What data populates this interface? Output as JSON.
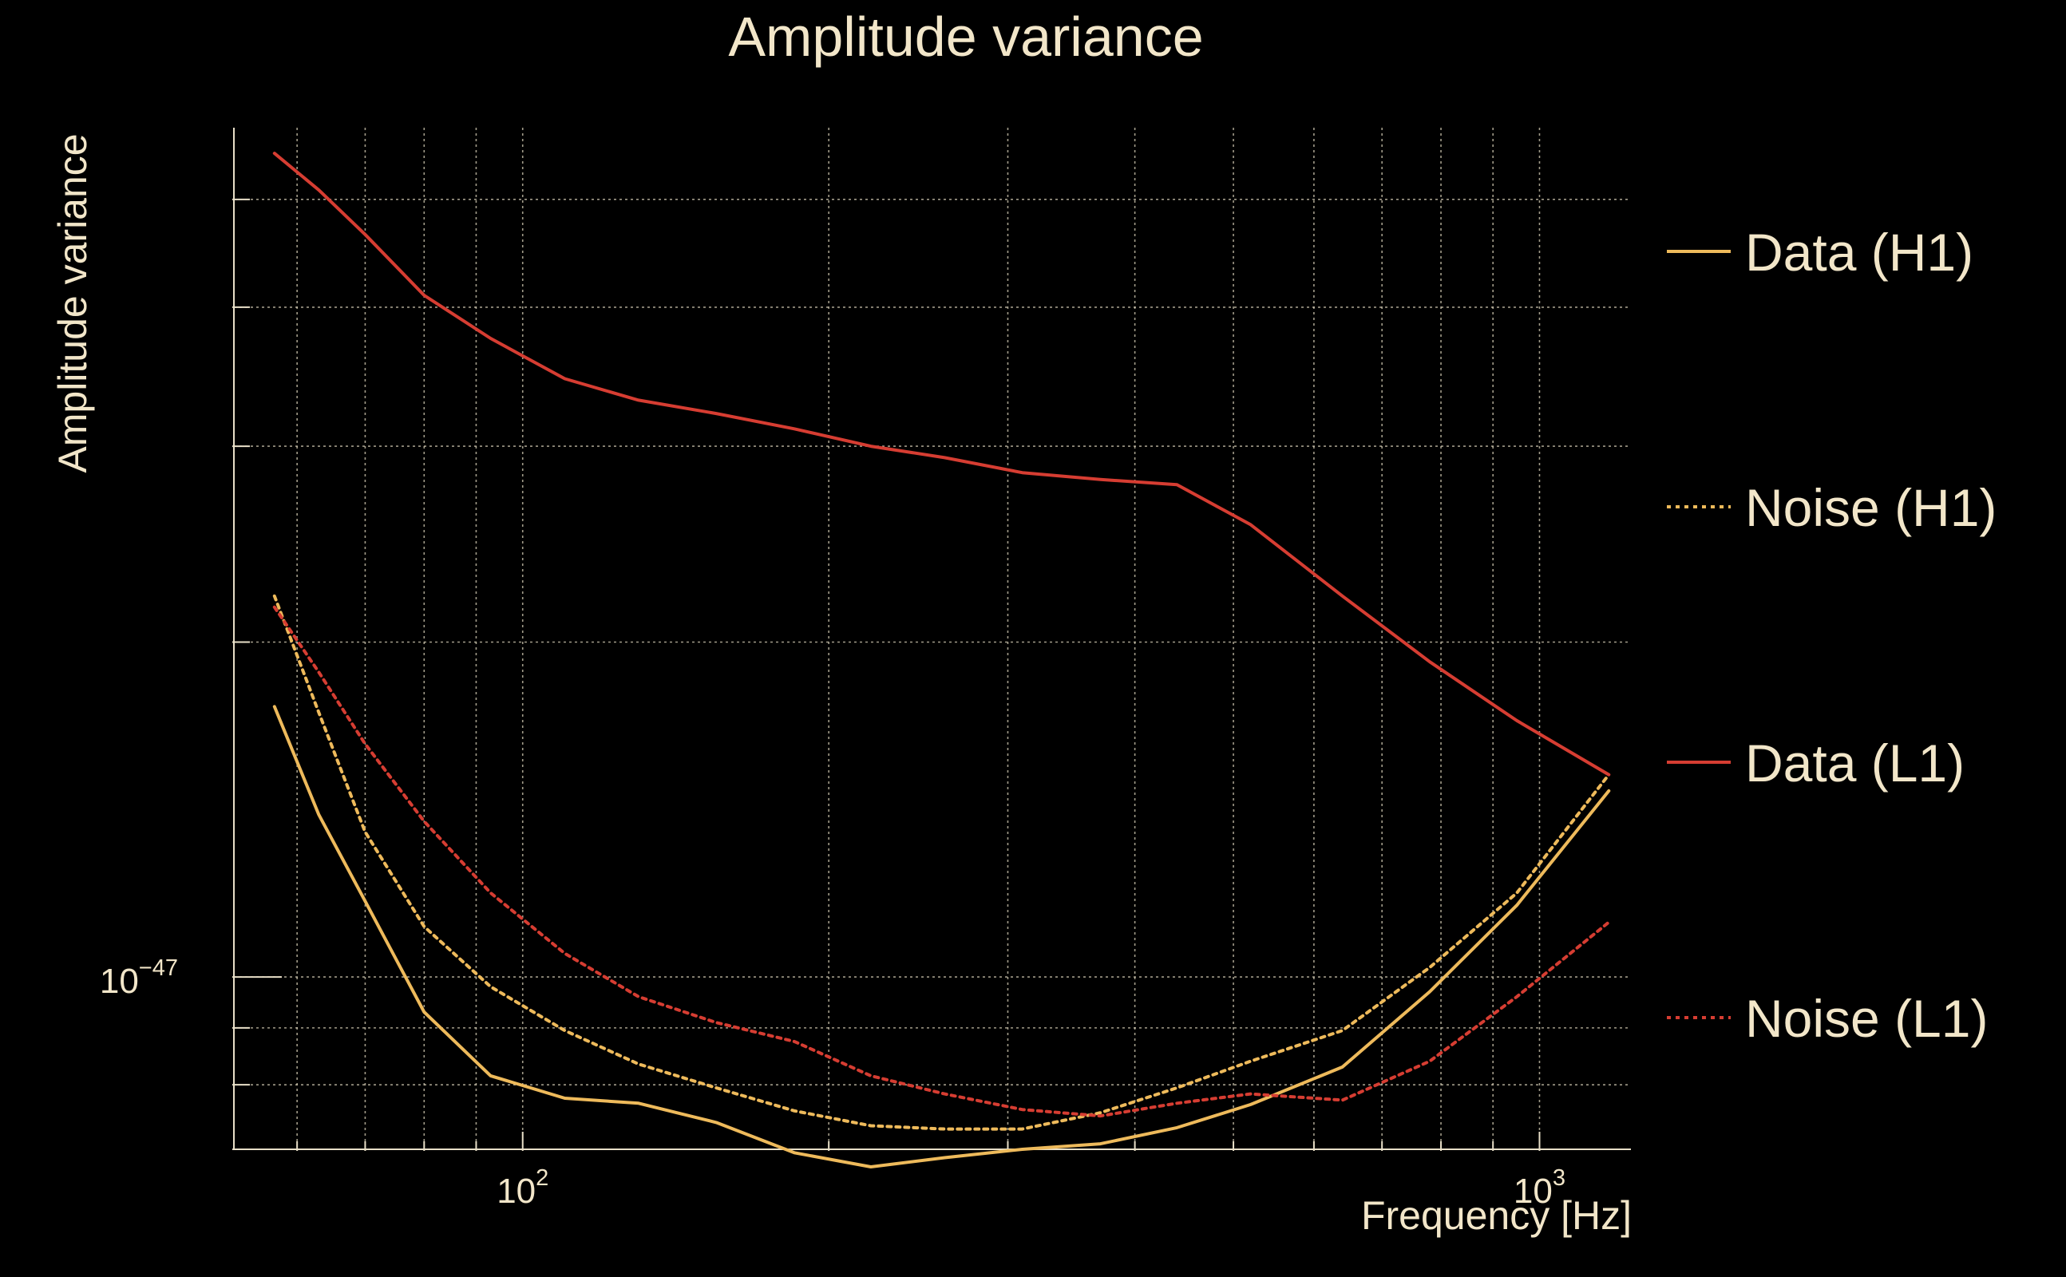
{
  "chart_data": {
    "type": "line",
    "title": "Amplitude variance",
    "xlabel": "Frequency [Hz]",
    "ylabel": "Amplitude variance",
    "xscale": "log",
    "yscale": "log",
    "xlim": [
      52,
      1230
    ],
    "ylim": [
      7e-48,
      5.8e-47
    ],
    "grid": true,
    "legend_position": "right",
    "x_ticks": [
      {
        "value": 100,
        "base": "10",
        "exp": "2"
      },
      {
        "value": 1000,
        "base": "10",
        "exp": "3"
      }
    ],
    "y_ticks": [
      {
        "value": 1e-47,
        "base": "10",
        "exp": "−47"
      }
    ],
    "x": [
      57,
      63,
      70,
      80,
      93,
      110,
      130,
      155,
      185,
      220,
      260,
      310,
      370,
      440,
      520,
      640,
      780,
      950,
      1170
    ],
    "series": [
      {
        "name": "Data (H1)",
        "color": "#eeba5b",
        "dash": "solid",
        "values": [
          1.75e-47,
          1.4e-47,
          1.17e-47,
          9.3e-48,
          8.15e-48,
          7.78e-48,
          7.7e-48,
          7.4e-48,
          6.95e-48,
          6.75e-48,
          6.88e-48,
          7e-48,
          7.08e-48,
          7.32e-48,
          7.68e-48,
          8.3e-48,
          9.7e-48,
          1.16e-47,
          1.47e-47
        ]
      },
      {
        "name": "Noise (H1)",
        "color": "#eeba5b",
        "dash": "dotted",
        "values": [
          2.2e-47,
          1.73e-47,
          1.35e-47,
          1.11e-47,
          9.8e-48,
          8.95e-48,
          8.35e-48,
          7.95e-48,
          7.58e-48,
          7.35e-48,
          7.3e-48,
          7.3e-48,
          7.55e-48,
          7.95e-48,
          8.4e-48,
          8.95e-48,
          1.02e-47,
          1.19e-47,
          1.52e-47
        ]
      },
      {
        "name": "Data (L1)",
        "color": "#d63d32",
        "dash": "solid",
        "values": [
          5.5e-47,
          5.1e-47,
          4.65e-47,
          4.1e-47,
          3.75e-47,
          3.45e-47,
          3.3e-47,
          3.21e-47,
          3.11e-47,
          3e-47,
          2.93e-47,
          2.84e-47,
          2.8e-47,
          2.77e-47,
          2.55e-47,
          2.2e-47,
          1.92e-47,
          1.7e-47,
          1.52e-47
        ]
      },
      {
        "name": "Noise (L1)",
        "color": "#d63d32",
        "dash": "dotted",
        "values": [
          2.15e-47,
          1.88e-47,
          1.62e-47,
          1.38e-47,
          1.19e-47,
          1.05e-47,
          9.6e-48,
          9.1e-48,
          8.75e-48,
          8.15e-48,
          7.85e-48,
          7.6e-48,
          7.5e-48,
          7.7e-48,
          7.85e-48,
          7.75e-48,
          8.4e-48,
          9.6e-48,
          1.12e-47
        ]
      }
    ]
  }
}
